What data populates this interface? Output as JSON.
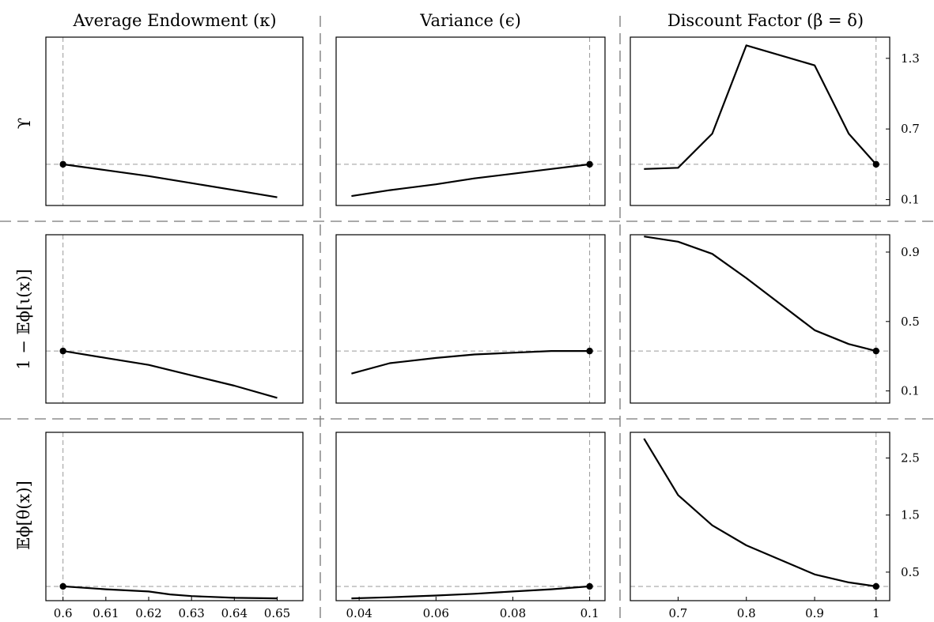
{
  "column_titles": [
    "Average Endowment (κ)",
    "Variance (ϵ)",
    "Discount Factor (β = δ)"
  ],
  "row_labels": [
    "ϒ",
    "1 − 𝔼ϕ[ι(x)]",
    "𝔼ϕ[θ(x)]"
  ],
  "style": {
    "line_color": "#000000",
    "reference_line_color": "#9a9a9a",
    "separator_color": "#777777"
  },
  "chart_data": [
    {
      "type": "line",
      "name": "upsilon-kappa",
      "row": 0,
      "col": 0,
      "x": [
        0.6,
        0.61,
        0.62,
        0.63,
        0.64,
        0.65
      ],
      "y": [
        0.4,
        0.35,
        0.3,
        0.24,
        0.18,
        0.12
      ],
      "xlim": [
        0.596,
        0.656
      ],
      "ylim": [
        0.05,
        1.48
      ],
      "ref_x": 0.6,
      "ref_y": 0.4,
      "marker": [
        0.6,
        0.4
      ]
    },
    {
      "type": "line",
      "name": "upsilon-epsilon",
      "row": 0,
      "col": 1,
      "x": [
        0.038,
        0.048,
        0.06,
        0.07,
        0.08,
        0.09,
        0.1
      ],
      "y": [
        0.13,
        0.18,
        0.23,
        0.28,
        0.32,
        0.36,
        0.4
      ],
      "xlim": [
        0.034,
        0.104
      ],
      "ylim": [
        0.05,
        1.48
      ],
      "ref_x": 0.1,
      "ref_y": 0.4,
      "marker": [
        0.1,
        0.4
      ]
    },
    {
      "type": "line",
      "name": "upsilon-beta",
      "row": 0,
      "col": 2,
      "x": [
        0.65,
        0.7,
        0.75,
        0.8,
        0.9,
        0.95,
        0.99
      ],
      "y": [
        0.36,
        0.37,
        0.66,
        1.41,
        1.24,
        0.66,
        0.4
      ],
      "xlim": [
        0.63,
        1.01
      ],
      "ylim": [
        0.05,
        1.48
      ],
      "yticks": [
        0.1,
        0.7,
        1.3
      ],
      "ytick_labels": [
        "0.1",
        "0.7",
        "1.3"
      ],
      "ref_x": 0.99,
      "ref_y": 0.4,
      "marker": [
        0.99,
        0.4
      ]
    },
    {
      "type": "line",
      "name": "iota-kappa",
      "row": 1,
      "col": 0,
      "x": [
        0.6,
        0.61,
        0.62,
        0.625,
        0.63,
        0.64,
        0.65
      ],
      "y": [
        0.33,
        0.29,
        0.25,
        0.22,
        0.19,
        0.13,
        0.06
      ],
      "xlim": [
        0.596,
        0.656
      ],
      "ylim": [
        0.03,
        1.0
      ],
      "ref_x": 0.6,
      "ref_y": 0.33,
      "marker": [
        0.6,
        0.33
      ]
    },
    {
      "type": "line",
      "name": "iota-epsilon",
      "row": 1,
      "col": 1,
      "x": [
        0.038,
        0.048,
        0.06,
        0.07,
        0.08,
        0.09,
        0.1
      ],
      "y": [
        0.2,
        0.26,
        0.29,
        0.31,
        0.32,
        0.33,
        0.33
      ],
      "xlim": [
        0.034,
        0.104
      ],
      "ylim": [
        0.03,
        1.0
      ],
      "ref_x": 0.1,
      "ref_y": 0.33,
      "marker": [
        0.1,
        0.33
      ]
    },
    {
      "type": "line",
      "name": "iota-beta",
      "row": 1,
      "col": 2,
      "x": [
        0.65,
        0.7,
        0.75,
        0.8,
        0.9,
        0.95,
        0.99
      ],
      "y": [
        0.99,
        0.96,
        0.89,
        0.75,
        0.45,
        0.37,
        0.33
      ],
      "xlim": [
        0.63,
        1.01
      ],
      "ylim": [
        0.03,
        1.0
      ],
      "yticks": [
        0.1,
        0.5,
        0.9
      ],
      "ytick_labels": [
        "0.1",
        "0.5",
        "0.9"
      ],
      "ref_x": 0.99,
      "ref_y": 0.33,
      "marker": [
        0.99,
        0.33
      ]
    },
    {
      "type": "line",
      "name": "theta-kappa",
      "row": 2,
      "col": 0,
      "x": [
        0.6,
        0.61,
        0.62,
        0.625,
        0.63,
        0.64,
        0.65
      ],
      "y": [
        0.25,
        0.2,
        0.16,
        0.11,
        0.08,
        0.05,
        0.04
      ],
      "xlim": [
        0.596,
        0.656
      ],
      "ylim": [
        0.0,
        2.95
      ],
      "xticks": [
        0.6,
        0.61,
        0.62,
        0.63,
        0.64,
        0.65
      ],
      "xtick_labels": [
        "0.6",
        "0.61",
        "0.62",
        "0.63",
        "0.64",
        "0.65"
      ],
      "ref_x": 0.6,
      "ref_y": 0.25,
      "marker": [
        0.6,
        0.25
      ]
    },
    {
      "type": "line",
      "name": "theta-epsilon",
      "row": 2,
      "col": 1,
      "x": [
        0.038,
        0.048,
        0.06,
        0.07,
        0.08,
        0.09,
        0.1
      ],
      "y": [
        0.04,
        0.06,
        0.09,
        0.12,
        0.16,
        0.2,
        0.25
      ],
      "xlim": [
        0.034,
        0.104
      ],
      "ylim": [
        0.0,
        2.95
      ],
      "xticks": [
        0.04,
        0.06,
        0.08,
        0.1
      ],
      "xtick_labels": [
        "0.04",
        "0.06",
        "0.08",
        "0.1"
      ],
      "ref_x": 0.1,
      "ref_y": 0.25,
      "marker": [
        0.1,
        0.25
      ]
    },
    {
      "type": "line",
      "name": "theta-beta",
      "row": 2,
      "col": 2,
      "x": [
        0.65,
        0.7,
        0.75,
        0.8,
        0.9,
        0.95,
        0.99
      ],
      "y": [
        2.84,
        1.85,
        1.32,
        0.97,
        0.46,
        0.32,
        0.25
      ],
      "xlim": [
        0.63,
        1.01
      ],
      "ylim": [
        0.0,
        2.95
      ],
      "xticks": [
        0.7,
        0.8,
        0.9,
        0.99
      ],
      "xtick_labels": [
        "0.7",
        "0.8",
        "0.9",
        "1"
      ],
      "yticks": [
        0.5,
        1.5,
        2.5
      ],
      "ytick_labels": [
        "0.5",
        "1.5",
        "2.5"
      ],
      "ref_x": 0.99,
      "ref_y": 0.25,
      "marker": [
        0.99,
        0.25
      ]
    }
  ]
}
